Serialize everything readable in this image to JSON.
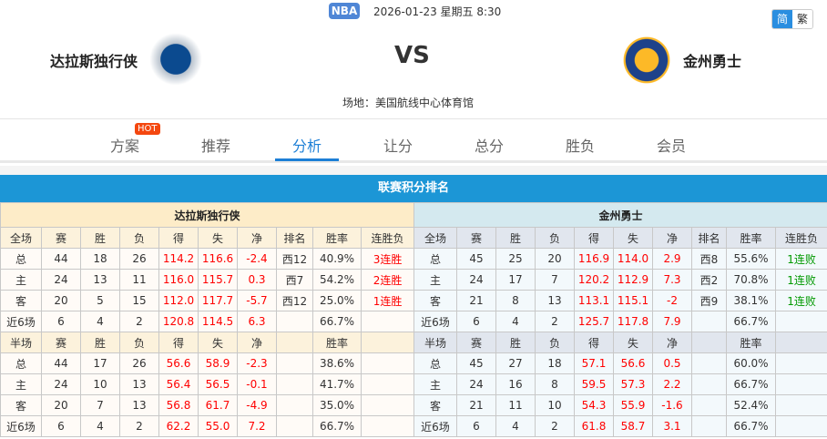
{
  "header": {
    "league": "NBA",
    "datetime": "2026-01-23 星期五 8:30",
    "lang": [
      "简",
      "繁"
    ],
    "home": "达拉斯独行侠",
    "away": "金州勇士",
    "vs": "VS",
    "venue": "场地：美国航线中心体育馆"
  },
  "tabs": [
    {
      "label": "方案",
      "badge": "HOT"
    },
    {
      "label": "推荐"
    },
    {
      "label": "分析"
    },
    {
      "label": "让分"
    },
    {
      "label": "总分"
    },
    {
      "label": "胜负"
    },
    {
      "label": "会员"
    }
  ],
  "active_tab": "分析",
  "section_title": "联赛积分排名",
  "colors": {
    "accent": "#1c96d6",
    "up": "#ff0000",
    "down": "#009900"
  },
  "tables": [
    {
      "team": "达拉斯独行侠",
      "full_header": [
        "全场",
        "赛",
        "胜",
        "负",
        "得",
        "失",
        "净",
        "排名",
        "胜率",
        "连胜负"
      ],
      "full_rows": [
        [
          "总",
          "44",
          "18",
          "26",
          "114.2",
          "116.6",
          "-2.4",
          "西12",
          "40.9%",
          "3连胜"
        ],
        [
          "主",
          "24",
          "13",
          "11",
          "116.0",
          "115.7",
          "0.3",
          "西7",
          "54.2%",
          "2连胜"
        ],
        [
          "客",
          "20",
          "5",
          "15",
          "112.0",
          "117.7",
          "-5.7",
          "西12",
          "25.0%",
          "1连胜"
        ],
        [
          "近6场",
          "6",
          "4",
          "2",
          "120.8",
          "114.5",
          "6.3",
          "",
          "66.7%",
          ""
        ]
      ],
      "half_header": [
        "半场",
        "赛",
        "胜",
        "负",
        "得",
        "失",
        "净",
        "",
        "胜率",
        ""
      ],
      "half_rows": [
        [
          "总",
          "44",
          "17",
          "26",
          "56.6",
          "58.9",
          "-2.3",
          "",
          "38.6%",
          ""
        ],
        [
          "主",
          "24",
          "10",
          "13",
          "56.4",
          "56.5",
          "-0.1",
          "",
          "41.7%",
          ""
        ],
        [
          "客",
          "20",
          "7",
          "13",
          "56.8",
          "61.7",
          "-4.9",
          "",
          "35.0%",
          ""
        ],
        [
          "近6场",
          "6",
          "4",
          "2",
          "62.2",
          "55.0",
          "7.2",
          "",
          "66.7%",
          ""
        ]
      ]
    },
    {
      "team": "金州勇士",
      "full_header": [
        "全场",
        "赛",
        "胜",
        "负",
        "得",
        "失",
        "净",
        "排名",
        "胜率",
        "连胜负"
      ],
      "full_rows": [
        [
          "总",
          "45",
          "25",
          "20",
          "116.9",
          "114.0",
          "2.9",
          "西8",
          "55.6%",
          "1连败"
        ],
        [
          "主",
          "24",
          "17",
          "7",
          "120.2",
          "112.9",
          "7.3",
          "西2",
          "70.8%",
          "1连败"
        ],
        [
          "客",
          "21",
          "8",
          "13",
          "113.1",
          "115.1",
          "-2",
          "西9",
          "38.1%",
          "1连败"
        ],
        [
          "近6场",
          "6",
          "4",
          "2",
          "125.7",
          "117.8",
          "7.9",
          "",
          "66.7%",
          ""
        ]
      ],
      "half_header": [
        "半场",
        "赛",
        "胜",
        "负",
        "得",
        "失",
        "净",
        "",
        "胜率",
        ""
      ],
      "half_rows": [
        [
          "总",
          "45",
          "27",
          "18",
          "57.1",
          "56.6",
          "0.5",
          "",
          "60.0%",
          ""
        ],
        [
          "主",
          "24",
          "16",
          "8",
          "59.5",
          "57.3",
          "2.2",
          "",
          "66.7%",
          ""
        ],
        [
          "客",
          "21",
          "11",
          "10",
          "54.3",
          "55.9",
          "-1.6",
          "",
          "52.4%",
          ""
        ],
        [
          "近6场",
          "6",
          "4",
          "2",
          "61.8",
          "58.7",
          "3.1",
          "",
          "66.7%",
          ""
        ]
      ]
    }
  ]
}
